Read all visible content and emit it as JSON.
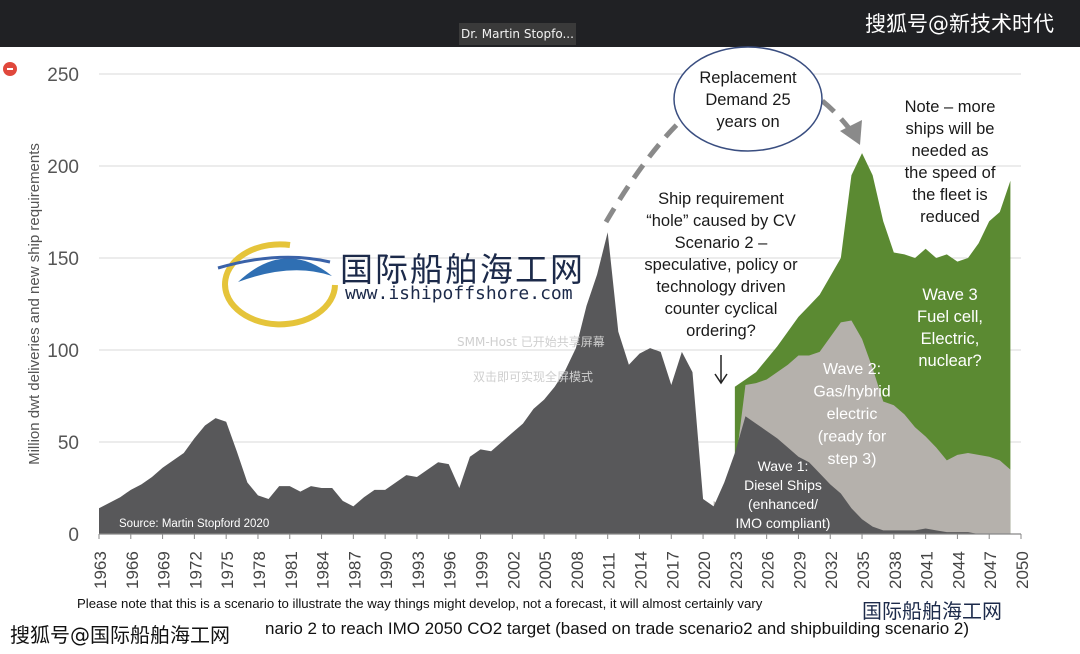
{
  "window": {
    "presenter_label": "Dr. Martin Stopfo...",
    "sohu_top": "搜狐号@新技术时代",
    "sohu_bottom": "搜狐号@国际船舶海工网"
  },
  "watermark": {
    "cn": "国际船舶海工网",
    "url": "www.ishipoffshore.com",
    "corner": "国际船舶海工网",
    "ghost1": "SMM-Host 已开始共享屏幕",
    "ghost2": "双击即可实现全屏模式"
  },
  "colors": {
    "dark": "#58585a",
    "gray": "#b5b1ac",
    "green": "#5b8a32"
  },
  "chart_data": {
    "type": "area",
    "ylabel": "Million dwt deliveries and new ship requirements",
    "ylim": [
      0,
      250
    ],
    "yticks": [
      0,
      50,
      100,
      150,
      200,
      250
    ],
    "xlim": [
      1963,
      2050
    ],
    "xticks": [
      "1963",
      "1966",
      "1969",
      "1972",
      "1975",
      "1978",
      "1981",
      "1984",
      "1987",
      "1990",
      "1993",
      "1996",
      "1999",
      "2002",
      "2005",
      "2008",
      "2011",
      "2014",
      "2017",
      "2020",
      "2023",
      "2026",
      "2029",
      "2032",
      "2035",
      "2038",
      "2041",
      "2044",
      "2047",
      "2050"
    ],
    "source": "Source: Martin Stopford 2020",
    "series": [
      {
        "name": "Wave 1: Diesel Ships (enhanced/ IMO compliant)",
        "color": "#58585a",
        "x": [
          1963,
          1964,
          1965,
          1966,
          1967,
          1968,
          1969,
          1970,
          1971,
          1972,
          1973,
          1974,
          1975,
          1976,
          1977,
          1978,
          1979,
          1980,
          1981,
          1982,
          1983,
          1984,
          1985,
          1986,
          1987,
          1988,
          1989,
          1990,
          1991,
          1992,
          1993,
          1994,
          1995,
          1996,
          1997,
          1998,
          1999,
          2000,
          2001,
          2002,
          2003,
          2004,
          2005,
          2006,
          2007,
          2008,
          2009,
          2010,
          2011,
          2012,
          2013,
          2014,
          2015,
          2016,
          2017,
          2018,
          2019,
          2020,
          2021,
          2022,
          2023,
          2024,
          2025,
          2026,
          2027,
          2028,
          2029,
          2030,
          2031,
          2032,
          2033,
          2034,
          2035,
          2036,
          2037,
          2038,
          2039,
          2040,
          2041,
          2042,
          2043,
          2044,
          2045,
          2046,
          2047,
          2048,
          2049
        ],
        "values": [
          14,
          17,
          20,
          24,
          27,
          31,
          36,
          40,
          44,
          52,
          59,
          63,
          61,
          45,
          28,
          21,
          19,
          26,
          26,
          23,
          26,
          25,
          25,
          18,
          15,
          20,
          24,
          24,
          28,
          32,
          31,
          35,
          39,
          38,
          25,
          42,
          46,
          45,
          50,
          55,
          60,
          68,
          73,
          80,
          89,
          101,
          124,
          141,
          164,
          110,
          92,
          98,
          101,
          99,
          81,
          99,
          88,
          19,
          15,
          28,
          44,
          64,
          60,
          56,
          52,
          47,
          42,
          39,
          33,
          27,
          22,
          14,
          8,
          4,
          2,
          2,
          2,
          2,
          3,
          2,
          1,
          1,
          1,
          0,
          0,
          0,
          0
        ]
      },
      {
        "name": "Wave 2: Gas/hybrid electric (ready for step 3)",
        "color": "#b5b1ac",
        "x": [
          2021,
          2022,
          2023,
          2024,
          2025,
          2026,
          2027,
          2028,
          2029,
          2030,
          2031,
          2032,
          2033,
          2034,
          2035,
          2036,
          2037,
          2038,
          2039,
          2040,
          2041,
          2042,
          2043,
          2044,
          2045,
          2046,
          2047,
          2048,
          2049
        ],
        "values": [
          18,
          13,
          35,
          81,
          82,
          84,
          88,
          92,
          97,
          97,
          99,
          107,
          115,
          116,
          106,
          90,
          72,
          70,
          65,
          58,
          53,
          47,
          40,
          43,
          44,
          43,
          42,
          40,
          35
        ]
      },
      {
        "name": "Wave 3 Fuel cell, Electric, nuclear?",
        "color": "#5b8a32",
        "x": [
          2023,
          2024,
          2025,
          2026,
          2027,
          2028,
          2029,
          2030,
          2031,
          2032,
          2033,
          2034,
          2035,
          2036,
          2037,
          2038,
          2039,
          2040,
          2041,
          2042,
          2043,
          2044,
          2045,
          2046,
          2047,
          2048,
          2049
        ],
        "values": [
          80,
          84,
          88,
          95,
          102,
          110,
          118,
          124,
          130,
          140,
          150,
          195,
          207,
          195,
          170,
          153,
          152,
          150,
          155,
          150,
          152,
          148,
          150,
          158,
          170,
          175,
          192
        ]
      }
    ],
    "annotations": {
      "replacement": "Replacement Demand 25 years on",
      "hole": "Ship requirement “hole” caused by CV Scenario 2 – speculative, policy or technology driven counter cyclical ordering?",
      "note": "Note – more ships will be needed as the speed of the fleet is reduced",
      "wave1": "Wave 1: Diesel Ships (enhanced/ IMO compliant)",
      "wave2": "Wave 2: Gas/hybrid electric (ready for step 3)",
      "wave3": "Wave 3 Fuel cell, Electric, nuclear?"
    },
    "footnote1": "Please note that this is a scenario to illustrate the way things might develop, not a forecast, it will almost certainly vary",
    "footnote2": "nario 2  to reach IMO 2050 CO2 target (based on trade scenario2 and shipbuilding scenario 2)"
  }
}
